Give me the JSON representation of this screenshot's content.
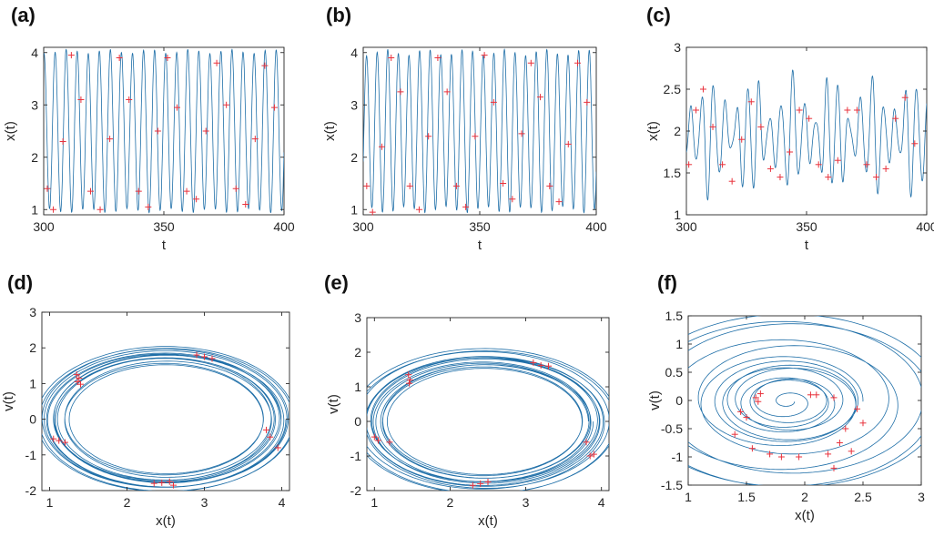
{
  "colors": {
    "series": "#1f6fa8",
    "marker": "#e8323c",
    "axis": "#262626"
  },
  "chart_data": [
    {
      "panel": "(a)",
      "type": "line",
      "xlabel": "t",
      "ylabel": "x(t)",
      "xlim": [
        300,
        400
      ],
      "ylim": [
        0.9,
        4.1
      ],
      "xticks": [
        300,
        350,
        400
      ],
      "yticks": [
        1,
        2,
        3,
        4
      ],
      "signal": {
        "mean": 2.5,
        "amp": 1.52,
        "amp_mod": 0.04,
        "period": 4.6
      },
      "markers": [
        [
          301.5,
          1.4
        ],
        [
          304,
          1.0
        ],
        [
          308,
          2.3
        ],
        [
          311.5,
          3.95
        ],
        [
          315.5,
          3.1
        ],
        [
          319.5,
          1.35
        ],
        [
          323.5,
          1.0
        ],
        [
          327.5,
          2.35
        ],
        [
          331.5,
          3.9
        ],
        [
          335.5,
          3.1
        ],
        [
          339.5,
          1.35
        ],
        [
          343.5,
          1.05
        ],
        [
          347.5,
          2.5
        ],
        [
          351.5,
          3.9
        ],
        [
          355.5,
          2.95
        ],
        [
          359.5,
          1.35
        ],
        [
          363.5,
          1.2
        ],
        [
          367.5,
          2.5
        ],
        [
          372,
          3.8
        ],
        [
          376,
          3.0
        ],
        [
          380,
          1.4
        ],
        [
          384,
          1.1
        ],
        [
          388,
          2.35
        ],
        [
          392,
          3.75
        ],
        [
          396,
          2.95
        ]
      ]
    },
    {
      "panel": "(b)",
      "type": "line",
      "xlabel": "t",
      "ylabel": "x(t)",
      "xlim": [
        300,
        400
      ],
      "ylim": [
        0.9,
        4.1
      ],
      "xticks": [
        300,
        350,
        400
      ],
      "yticks": [
        1,
        2,
        3,
        4
      ],
      "signal": {
        "mean": 2.5,
        "amp": 1.5,
        "amp_mod": 0.06,
        "period": 4.55
      },
      "markers": [
        [
          301.5,
          1.45
        ],
        [
          304,
          0.95
        ],
        [
          308,
          2.2
        ],
        [
          312,
          3.9
        ],
        [
          316,
          3.25
        ],
        [
          320,
          1.45
        ],
        [
          324,
          1.0
        ],
        [
          328,
          2.4
        ],
        [
          332,
          3.9
        ],
        [
          336,
          3.25
        ],
        [
          340,
          1.45
        ],
        [
          344,
          1.05
        ],
        [
          348,
          2.4
        ],
        [
          352,
          3.95
        ],
        [
          356,
          3.05
        ],
        [
          360,
          1.5
        ],
        [
          364,
          1.2
        ],
        [
          368,
          2.45
        ],
        [
          372,
          3.8
        ],
        [
          376,
          3.15
        ],
        [
          380,
          1.45
        ],
        [
          384,
          1.15
        ],
        [
          388,
          2.25
        ],
        [
          392,
          3.8
        ],
        [
          396,
          3.05
        ]
      ]
    },
    {
      "panel": "(c)",
      "type": "line",
      "xlabel": "t",
      "ylabel": "x(t)",
      "xlim": [
        300,
        400
      ],
      "ylim": [
        1,
        3
      ],
      "xticks": [
        300,
        350,
        400
      ],
      "yticks": [
        1,
        1.5,
        2,
        2.5,
        3
      ],
      "signal": {
        "mean": 1.95,
        "amp": 0.45,
        "amp_mod": 0.22,
        "period": 4.7
      },
      "markers": [
        [
          301,
          1.6
        ],
        [
          304,
          2.25
        ],
        [
          307,
          2.5
        ],
        [
          311,
          2.05
        ],
        [
          315,
          1.6
        ],
        [
          319,
          1.4
        ],
        [
          323,
          1.9
        ],
        [
          327,
          2.35
        ],
        [
          331,
          2.05
        ],
        [
          335,
          1.55
        ],
        [
          339,
          1.45
        ],
        [
          343,
          1.75
        ],
        [
          347,
          2.25
        ],
        [
          351,
          2.15
        ],
        [
          355,
          1.6
        ],
        [
          359,
          1.45
        ],
        [
          363,
          1.65
        ],
        [
          367,
          2.25
        ],
        [
          371,
          2.25
        ],
        [
          375,
          1.6
        ],
        [
          379,
          1.45
        ],
        [
          383,
          1.55
        ],
        [
          387,
          2.15
        ],
        [
          391,
          2.4
        ],
        [
          395,
          1.85
        ]
      ]
    },
    {
      "panel": "(d)",
      "type": "scatter",
      "xlabel": "x(t)",
      "ylabel": "v(t)",
      "xlim": [
        0.9,
        4.1
      ],
      "ylim": [
        -2,
        3
      ],
      "xticks": [
        1,
        2,
        3,
        4
      ],
      "yticks": [
        -2,
        -1,
        0,
        1,
        2,
        3
      ],
      "orbit": {
        "cx": 2.5,
        "cy": 0.0,
        "rx": 1.47,
        "ry": 1.85,
        "loops": 14,
        "spread": 0.16
      },
      "markers": [
        [
          1.35,
          1.25
        ],
        [
          1.38,
          1.15
        ],
        [
          1.36,
          1.05
        ],
        [
          1.4,
          0.98
        ],
        [
          1.05,
          -0.55
        ],
        [
          1.12,
          -0.6
        ],
        [
          1.2,
          -0.65
        ],
        [
          2.35,
          -1.8
        ],
        [
          2.45,
          -1.78
        ],
        [
          2.55,
          -1.75
        ],
        [
          2.6,
          -1.85
        ],
        [
          2.9,
          1.8
        ],
        [
          3.0,
          1.75
        ],
        [
          3.1,
          1.7
        ],
        [
          3.8,
          -0.3
        ],
        [
          3.85,
          -0.5
        ],
        [
          3.95,
          -0.8
        ]
      ]
    },
    {
      "panel": "(e)",
      "type": "scatter",
      "xlabel": "x(t)",
      "ylabel": "v(t)",
      "xlim": [
        0.9,
        4.1
      ],
      "ylim": [
        -2,
        3
      ],
      "xticks": [
        1,
        2,
        3,
        4
      ],
      "yticks": [
        -2,
        -1,
        0,
        1,
        2,
        3
      ],
      "orbit": {
        "cx": 2.45,
        "cy": 0.0,
        "rx": 1.5,
        "ry": 1.85,
        "loops": 14,
        "spread": 0.18
      },
      "markers": [
        [
          1.45,
          1.35
        ],
        [
          1.47,
          1.2
        ],
        [
          1.46,
          1.1
        ],
        [
          1.0,
          -0.45
        ],
        [
          1.05,
          -0.55
        ],
        [
          1.2,
          -0.6
        ],
        [
          2.3,
          -1.85
        ],
        [
          2.4,
          -1.8
        ],
        [
          2.5,
          -1.75
        ],
        [
          3.1,
          1.7
        ],
        [
          3.2,
          1.62
        ],
        [
          3.3,
          1.6
        ],
        [
          3.8,
          -0.6
        ],
        [
          3.9,
          -0.95
        ],
        [
          3.85,
          -1.0
        ]
      ]
    },
    {
      "panel": "(f)",
      "type": "scatter",
      "xlabel": "x(t)",
      "ylabel": "v(t)",
      "xlim": [
        1,
        3
      ],
      "ylim": [
        -1.5,
        1.5
      ],
      "xticks": [
        1,
        1.5,
        2,
        2.5,
        3
      ],
      "yticks": [
        -1.5,
        -1,
        -0.5,
        0,
        0.5,
        1,
        1.5
      ],
      "orbit": {
        "cx": 1.85,
        "cy": -0.02,
        "rx": 0.95,
        "ry": 1.1,
        "loops": 14,
        "spread": 0.55
      },
      "markers": [
        [
          1.58,
          0.05
        ],
        [
          1.6,
          -0.02
        ],
        [
          1.62,
          0.12
        ],
        [
          1.45,
          -0.2
        ],
        [
          1.5,
          -0.3
        ],
        [
          1.4,
          -0.6
        ],
        [
          1.55,
          -0.85
        ],
        [
          1.7,
          -0.95
        ],
        [
          1.8,
          -1.0
        ],
        [
          1.95,
          -1.0
        ],
        [
          2.05,
          0.1
        ],
        [
          2.1,
          0.1
        ],
        [
          2.25,
          0.05
        ],
        [
          2.3,
          -0.75
        ],
        [
          2.35,
          -0.5
        ],
        [
          2.45,
          -0.15
        ],
        [
          2.5,
          -0.4
        ],
        [
          2.2,
          -0.95
        ],
        [
          2.25,
          -1.2
        ],
        [
          2.4,
          -0.9
        ]
      ]
    }
  ]
}
